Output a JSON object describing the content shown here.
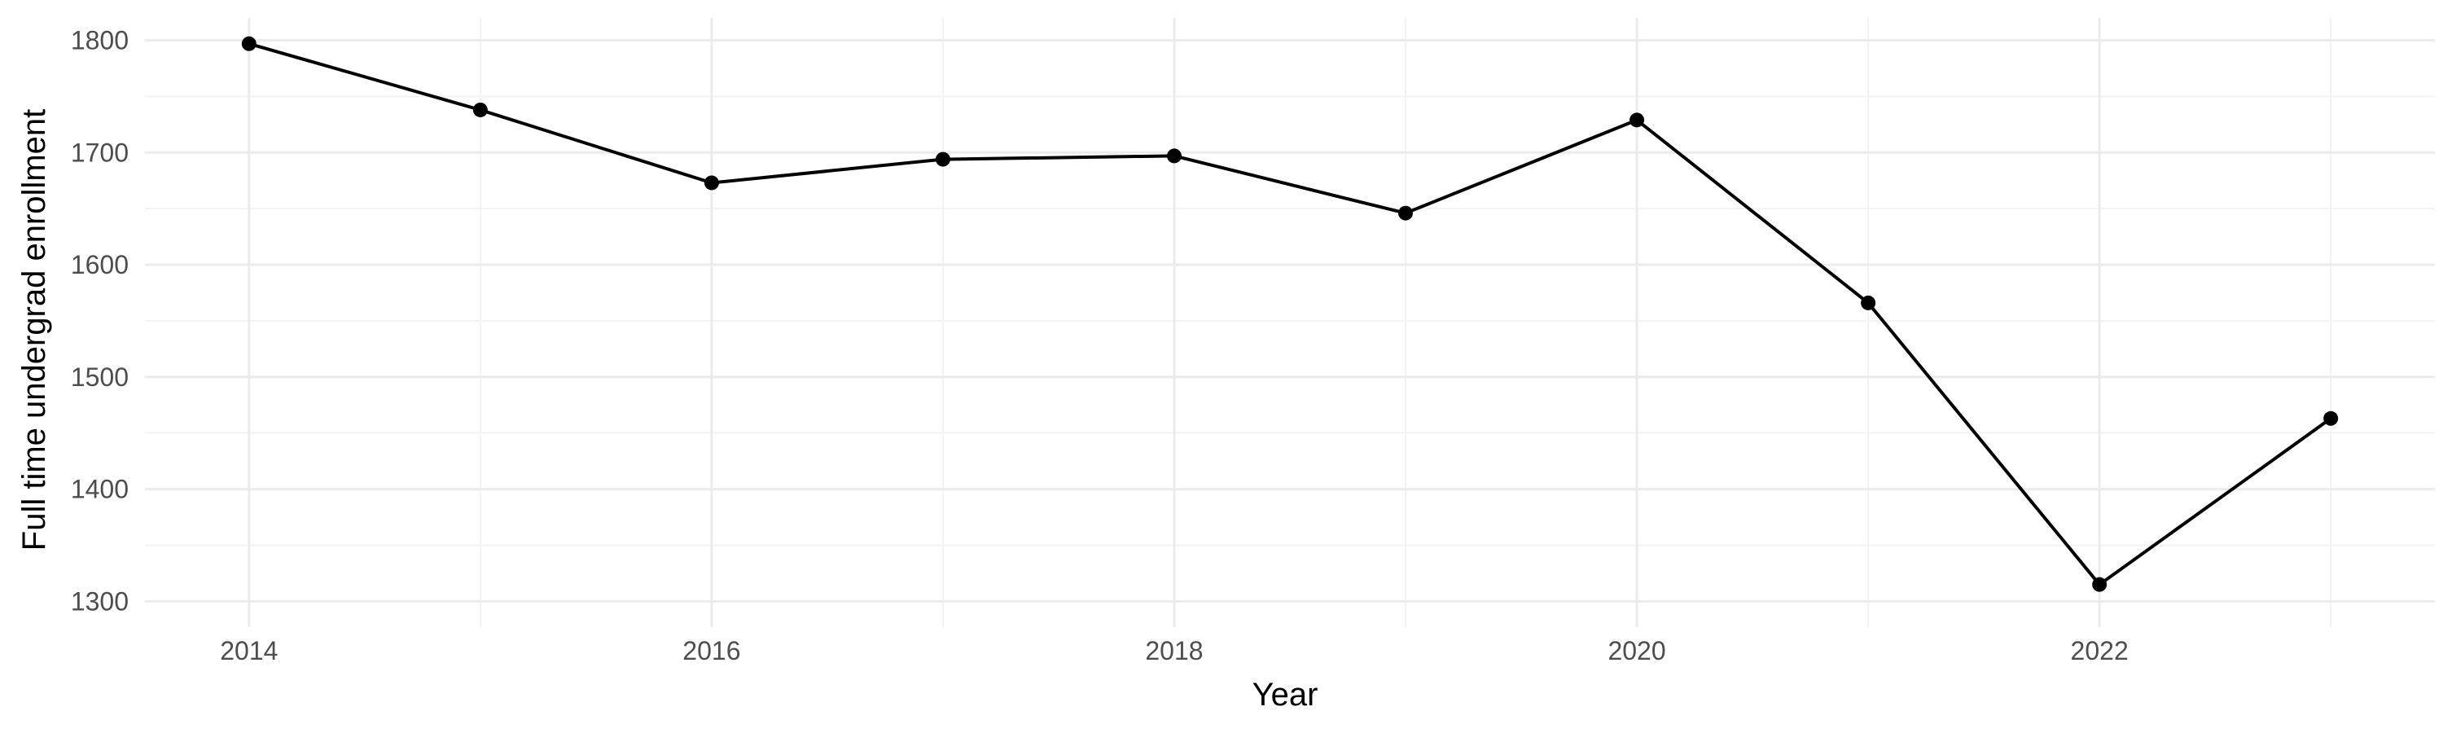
{
  "chart_data": {
    "type": "line",
    "title": "",
    "xlabel": "Year",
    "ylabel": "Full time undergrad enrollment",
    "x": [
      2014,
      2015,
      2016,
      2017,
      2018,
      2019,
      2020,
      2021,
      2022,
      2023
    ],
    "series": [
      {
        "name": "",
        "values": [
          1797,
          1738,
          1673,
          1694,
          1697,
          1646,
          1729,
          1566,
          1315,
          1463
        ]
      }
    ],
    "xlim": [
      2013.55,
      2023.45
    ],
    "ylim": [
      1277,
      1820
    ],
    "x_ticks": [
      2014,
      2016,
      2018,
      2020,
      2022
    ],
    "x_tick_labels": [
      "2014",
      "2016",
      "2018",
      "2020",
      "2022"
    ],
    "y_ticks": [
      1300,
      1400,
      1500,
      1600,
      1700,
      1800
    ],
    "y_tick_labels": [
      "1300",
      "1400",
      "1500",
      "1600",
      "1700",
      "1800"
    ],
    "grid": true,
    "legend": "none",
    "colors": {
      "line": "#000000",
      "points": "#000000",
      "grid_major": "#EBEBEB",
      "grid_minor": "#F3F3F3",
      "background": "#FFFFFF",
      "tick_text": "#4D4D4D"
    }
  }
}
